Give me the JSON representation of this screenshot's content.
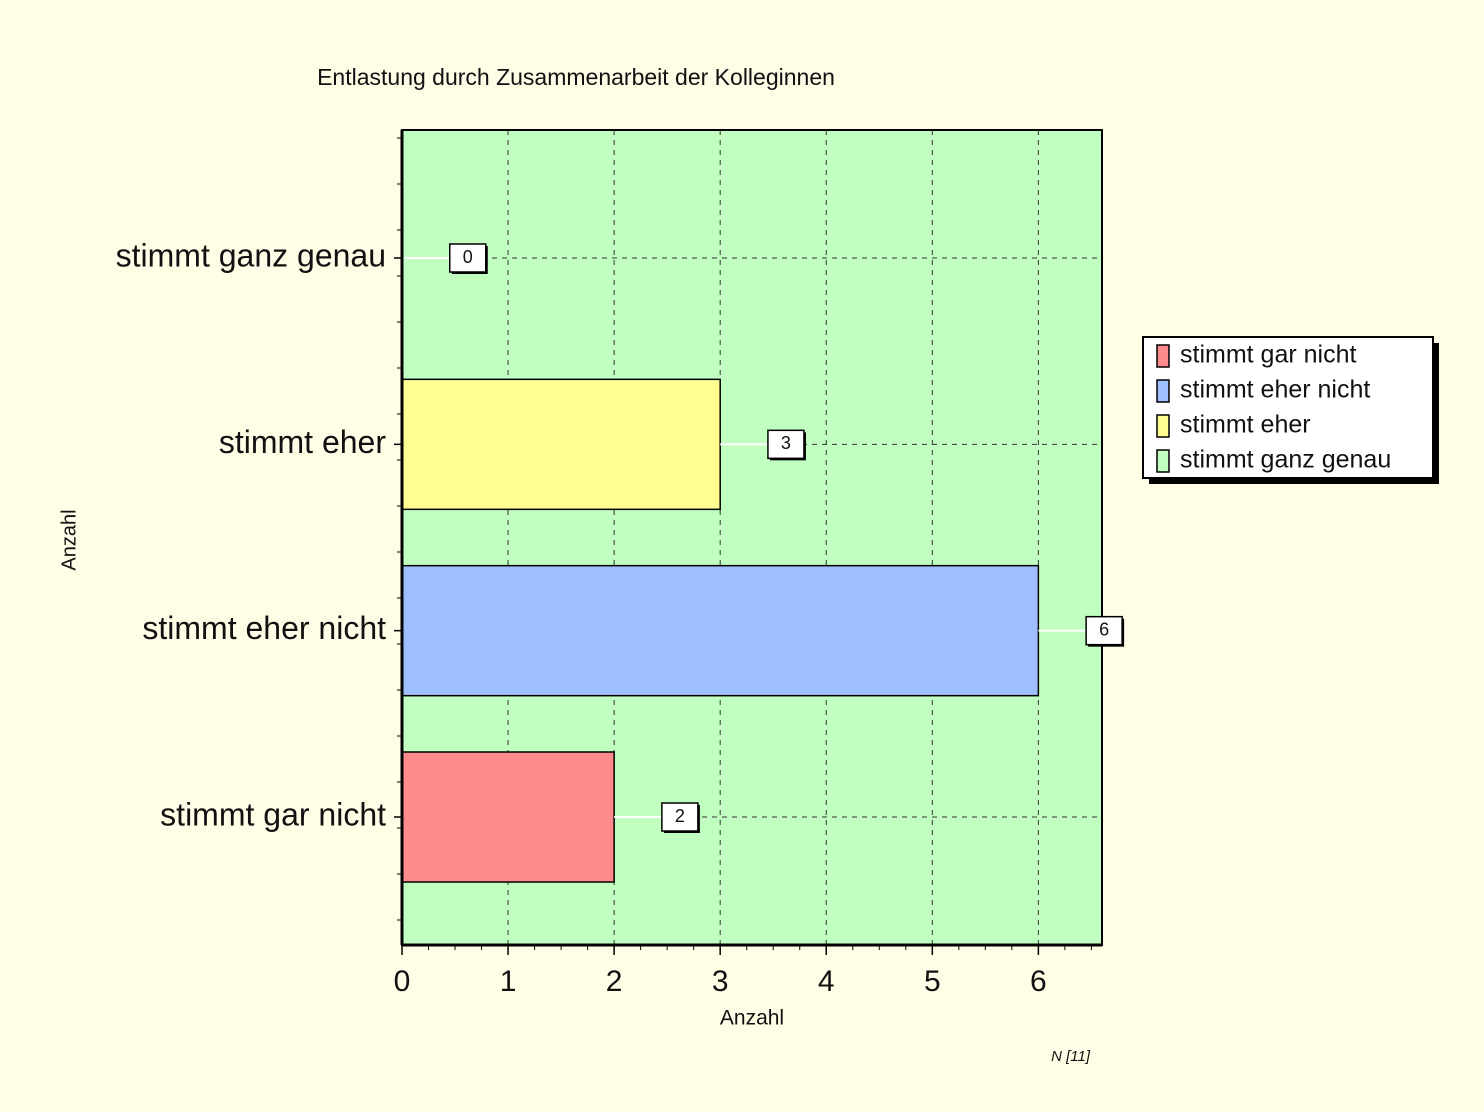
{
  "chart_data": {
    "type": "bar",
    "orientation": "horizontal",
    "title": "Entlastung durch Zusammenarbeit der Kolleginnen",
    "xlabel": "Anzahl",
    "ylabel": "Anzahl",
    "note": "N [11]",
    "categories": [
      "stimmt gar nicht",
      "stimmt eher  nicht",
      "stimmt eher",
      "stimmt ganz genau"
    ],
    "values": [
      2,
      6,
      3,
      0
    ],
    "colors": [
      "#ff8c8c",
      "#a0bfff",
      "#ffff91",
      "#c0ffc0"
    ],
    "xlim": [
      0,
      6.6
    ],
    "xticks": [
      0,
      1,
      2,
      3,
      4,
      5,
      6
    ],
    "grid": true,
    "legend": "right",
    "plot_background": "#c0ffc0"
  }
}
